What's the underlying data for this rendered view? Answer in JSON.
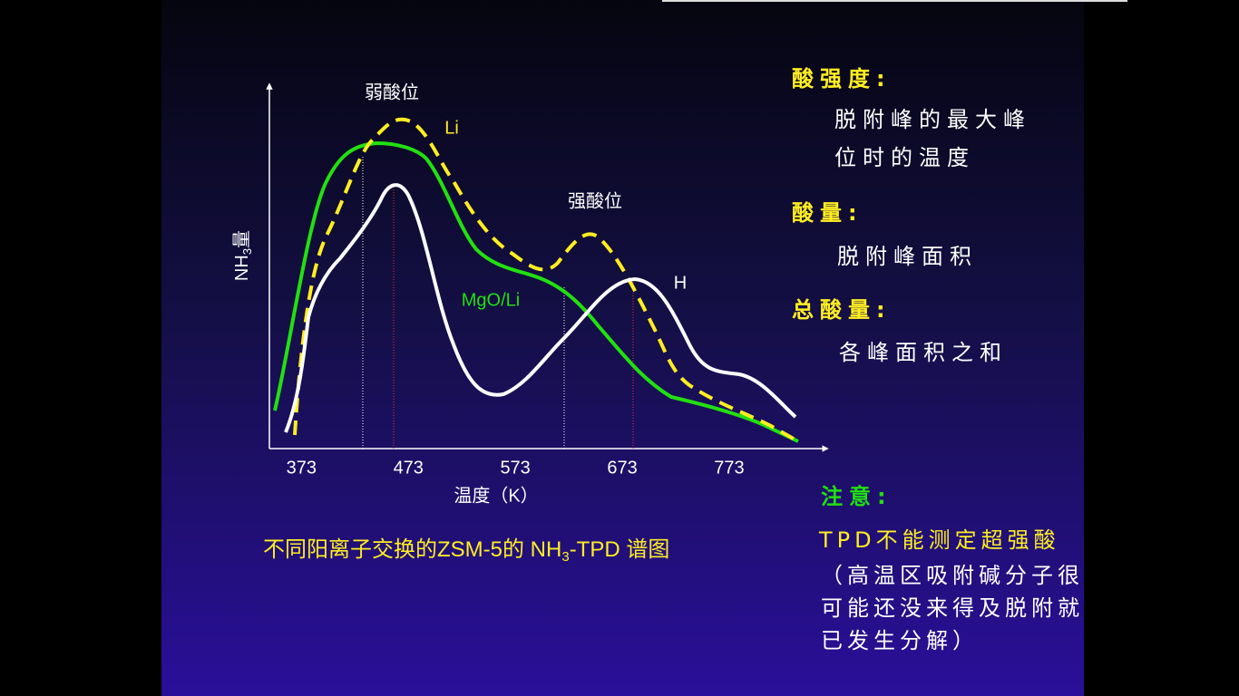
{
  "figure": {
    "y_label": [
      "NH",
      "3",
      "量"
    ],
    "x_label": "温度（K）",
    "xlim": [
      343,
      863
    ],
    "xticks": [
      373,
      473,
      573,
      673,
      773
    ],
    "annotations": {
      "weak": "弱酸位",
      "strong": "强酸位"
    },
    "series_labels": {
      "li": "Li",
      "h": "H",
      "mgo": "MgO/Li"
    },
    "caption": [
      "不同阳离子交换的ZSM-5的 NH",
      "3",
      "-TPD 谱图"
    ]
  },
  "notes": {
    "acid_strength": {
      "heading": "酸强度:",
      "lines": [
        "脱附峰的最大峰",
        "位时的温度"
      ]
    },
    "acid_amount": {
      "heading": "酸量:",
      "lines": [
        "脱附峰面积"
      ]
    },
    "total_acid": {
      "heading": "总酸量:",
      "lines": [
        "各峰面积之和"
      ]
    },
    "caution": {
      "heading": "注意:",
      "lead": "TPD不能测定超强酸",
      "lines": [
        "（高温区吸附碱分子很",
        "可能还没来得及脱附就",
        "已发生分解）"
      ]
    }
  }
}
